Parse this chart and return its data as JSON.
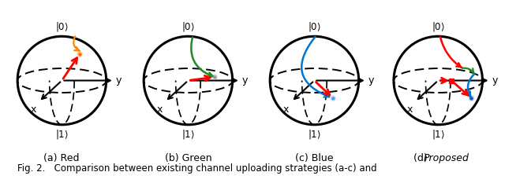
{
  "fig_width": 6.4,
  "fig_height": 2.33,
  "dpi": 100,
  "background": "#ffffff",
  "panel_labels": [
    "(a) Red",
    "(b) Green",
    "(c) Blue"
  ],
  "panel_d_prefix": "(d) ",
  "panel_d_italic": "Proposed",
  "caption": "Fig. 2.   Comparison between existing channel uploading strategies (a-c) and",
  "red": "#ff0000",
  "orange": "#ff8800",
  "green": "#228822",
  "blue": "#0077cc",
  "gray": "#888888"
}
